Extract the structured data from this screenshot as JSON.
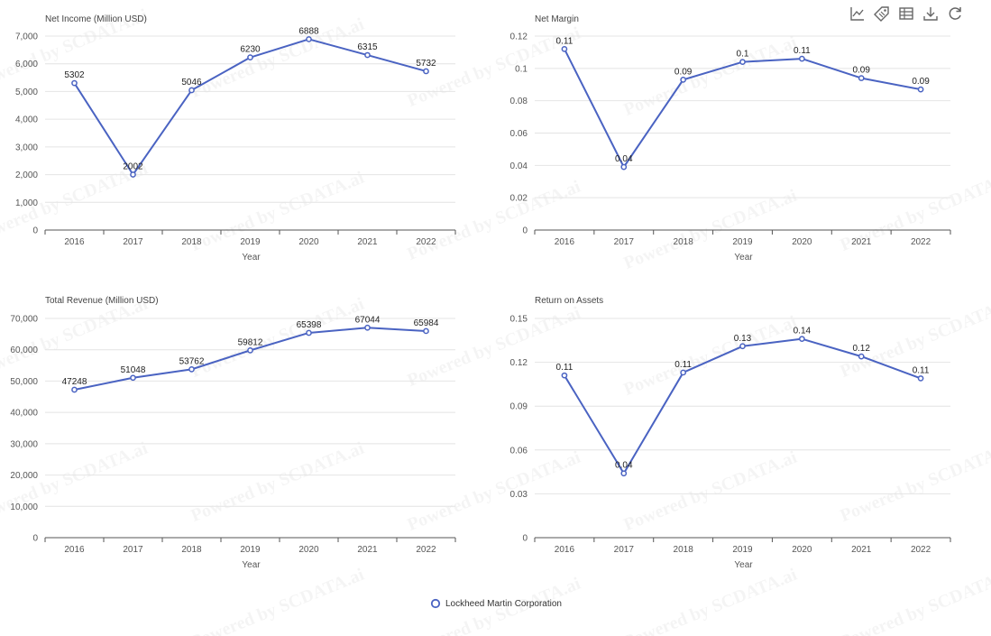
{
  "accent_color": "#4a63c2",
  "toolbar": [
    {
      "name": "line-chart-icon"
    },
    {
      "name": "tag-icon"
    },
    {
      "name": "data-view-icon"
    },
    {
      "name": "download-icon"
    },
    {
      "name": "refresh-icon"
    }
  ],
  "legend": {
    "label": "Lockheed Martin Corporation"
  },
  "watermark": "Powered by SCDATA.ai",
  "chart_data": [
    {
      "type": "line",
      "title": "Net Income (Million USD)",
      "xlabel": "Year",
      "categories": [
        "2016",
        "2017",
        "2018",
        "2019",
        "2020",
        "2021",
        "2022"
      ],
      "series": [
        {
          "name": "Lockheed Martin Corporation",
          "values": [
            5302,
            2002,
            5046,
            6230,
            6888,
            6315,
            5732
          ],
          "labels": [
            "5302",
            "2002",
            "5046",
            "6230",
            "6888",
            "6315",
            "5732"
          ]
        }
      ],
      "ylim": [
        0,
        7000
      ],
      "yticks": [
        0,
        1000,
        2000,
        3000,
        4000,
        5000,
        6000,
        7000
      ],
      "ytick_labels": [
        "0",
        "1,000",
        "2,000",
        "3,000",
        "4,000",
        "5,000",
        "6,000",
        "7,000"
      ],
      "grid": true
    },
    {
      "type": "line",
      "title": "Net Margin",
      "xlabel": "Year",
      "categories": [
        "2016",
        "2017",
        "2018",
        "2019",
        "2020",
        "2021",
        "2022"
      ],
      "series": [
        {
          "name": "Lockheed Martin Corporation",
          "values": [
            0.112,
            0.039,
            0.093,
            0.104,
            0.106,
            0.094,
            0.087
          ],
          "labels": [
            "0.11",
            "0.04",
            "0.09",
            "0.1",
            "0.11",
            "0.09",
            "0.09"
          ]
        }
      ],
      "ylim": [
        0,
        0.12
      ],
      "yticks": [
        0,
        0.02,
        0.04,
        0.06,
        0.08,
        0.1,
        0.12
      ],
      "ytick_labels": [
        "0",
        "0.02",
        "0.04",
        "0.06",
        "0.08",
        "0.1",
        "0.12"
      ],
      "grid": true
    },
    {
      "type": "line",
      "title": "Total Revenue (Million USD)",
      "xlabel": "Year",
      "categories": [
        "2016",
        "2017",
        "2018",
        "2019",
        "2020",
        "2021",
        "2022"
      ],
      "series": [
        {
          "name": "Lockheed Martin Corporation",
          "values": [
            47248,
            51048,
            53762,
            59812,
            65398,
            67044,
            65984
          ],
          "labels": [
            "47248",
            "51048",
            "53762",
            "59812",
            "65398",
            "67044",
            "65984"
          ]
        }
      ],
      "ylim": [
        0,
        70000
      ],
      "yticks": [
        0,
        10000,
        20000,
        30000,
        40000,
        50000,
        60000,
        70000
      ],
      "ytick_labels": [
        "0",
        "10,000",
        "20,000",
        "30,000",
        "40,000",
        "50,000",
        "60,000",
        "70,000"
      ],
      "grid": true
    },
    {
      "type": "line",
      "title": "Return on Assets",
      "xlabel": "Year",
      "categories": [
        "2016",
        "2017",
        "2018",
        "2019",
        "2020",
        "2021",
        "2022"
      ],
      "series": [
        {
          "name": "Lockheed Martin Corporation",
          "values": [
            0.111,
            0.044,
            0.113,
            0.131,
            0.136,
            0.124,
            0.109
          ],
          "labels": [
            "0.11",
            "0.04",
            "0.11",
            "0.13",
            "0.14",
            "0.12",
            "0.11"
          ]
        }
      ],
      "ylim": [
        0,
        0.15
      ],
      "yticks": [
        0,
        0.03,
        0.06,
        0.09,
        0.12,
        0.15
      ],
      "ytick_labels": [
        "0",
        "0.03",
        "0.06",
        "0.09",
        "0.12",
        "0.15"
      ],
      "grid": true
    }
  ]
}
